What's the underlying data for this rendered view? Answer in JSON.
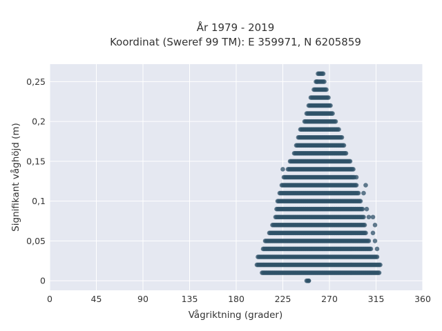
{
  "chart_data": {
    "type": "scatter",
    "title_line1": "År 1979 - 2019",
    "title_line2": "Koordinat (Sweref 99 TM): E 359971, N 6205859",
    "xlabel": "Vågriktning (grader)",
    "ylabel": "Signifikant våghöjd (m)",
    "xlim": [
      0,
      360
    ],
    "ylim": [
      -0.012,
      0.272
    ],
    "x_ticks": [
      0,
      45,
      90,
      135,
      180,
      225,
      270,
      315,
      360
    ],
    "x_tick_labels": [
      "0",
      "45",
      "90",
      "135",
      "180",
      "225",
      "270",
      "315",
      "360"
    ],
    "y_ticks": [
      0,
      0.05,
      0.1,
      0.15,
      0.2,
      0.25
    ],
    "y_tick_labels": [
      "0",
      "0,05",
      "0,1",
      "0,15",
      "0,2",
      "0,25"
    ],
    "grid": true,
    "marker_color": "#2f5168",
    "background_color": "#e5e8f1",
    "rows": [
      {
        "h": 0.0,
        "xmin": 248,
        "xmax": 250
      },
      {
        "h": 0.01,
        "xmin": 205,
        "xmax": 318
      },
      {
        "h": 0.02,
        "xmin": 200,
        "xmax": 319
      },
      {
        "h": 0.03,
        "xmin": 201,
        "xmax": 316
      },
      {
        "h": 0.04,
        "xmin": 206,
        "xmax": 310
      },
      {
        "h": 0.05,
        "xmin": 208,
        "xmax": 308
      },
      {
        "h": 0.06,
        "xmin": 212,
        "xmax": 305
      },
      {
        "h": 0.07,
        "xmin": 215,
        "xmax": 304
      },
      {
        "h": 0.08,
        "xmin": 218,
        "xmax": 303
      },
      {
        "h": 0.09,
        "xmin": 219,
        "xmax": 302
      },
      {
        "h": 0.1,
        "xmin": 220,
        "xmax": 300
      },
      {
        "h": 0.11,
        "xmin": 222,
        "xmax": 298
      },
      {
        "h": 0.12,
        "xmin": 224,
        "xmax": 296
      },
      {
        "h": 0.13,
        "xmin": 226,
        "xmax": 294
      },
      {
        "h": 0.14,
        "xmin": 230,
        "xmax": 293
      },
      {
        "h": 0.15,
        "xmin": 232,
        "xmax": 290
      },
      {
        "h": 0.16,
        "xmin": 236,
        "xmax": 286
      },
      {
        "h": 0.17,
        "xmin": 238,
        "xmax": 284
      },
      {
        "h": 0.18,
        "xmin": 240,
        "xmax": 282
      },
      {
        "h": 0.19,
        "xmin": 242,
        "xmax": 279
      },
      {
        "h": 0.2,
        "xmin": 246,
        "xmax": 276
      },
      {
        "h": 0.21,
        "xmin": 248,
        "xmax": 273
      },
      {
        "h": 0.22,
        "xmin": 250,
        "xmax": 271
      },
      {
        "h": 0.23,
        "xmin": 252,
        "xmax": 269
      },
      {
        "h": 0.24,
        "xmin": 255,
        "xmax": 267
      },
      {
        "h": 0.25,
        "xmin": 257,
        "xmax": 265
      },
      {
        "h": 0.26,
        "xmin": 259,
        "xmax": 264
      }
    ],
    "outliers": [
      {
        "x": 250,
        "y": 0.0
      },
      {
        "x": 316,
        "y": 0.04
      },
      {
        "x": 314,
        "y": 0.05
      },
      {
        "x": 312,
        "y": 0.06
      },
      {
        "x": 314,
        "y": 0.07
      },
      {
        "x": 308,
        "y": 0.08
      },
      {
        "x": 312,
        "y": 0.08
      },
      {
        "x": 306,
        "y": 0.09
      },
      {
        "x": 303,
        "y": 0.11
      },
      {
        "x": 305,
        "y": 0.12
      },
      {
        "x": 296,
        "y": 0.13
      },
      {
        "x": 225,
        "y": 0.14
      },
      {
        "x": 258,
        "y": 0.25
      }
    ]
  }
}
